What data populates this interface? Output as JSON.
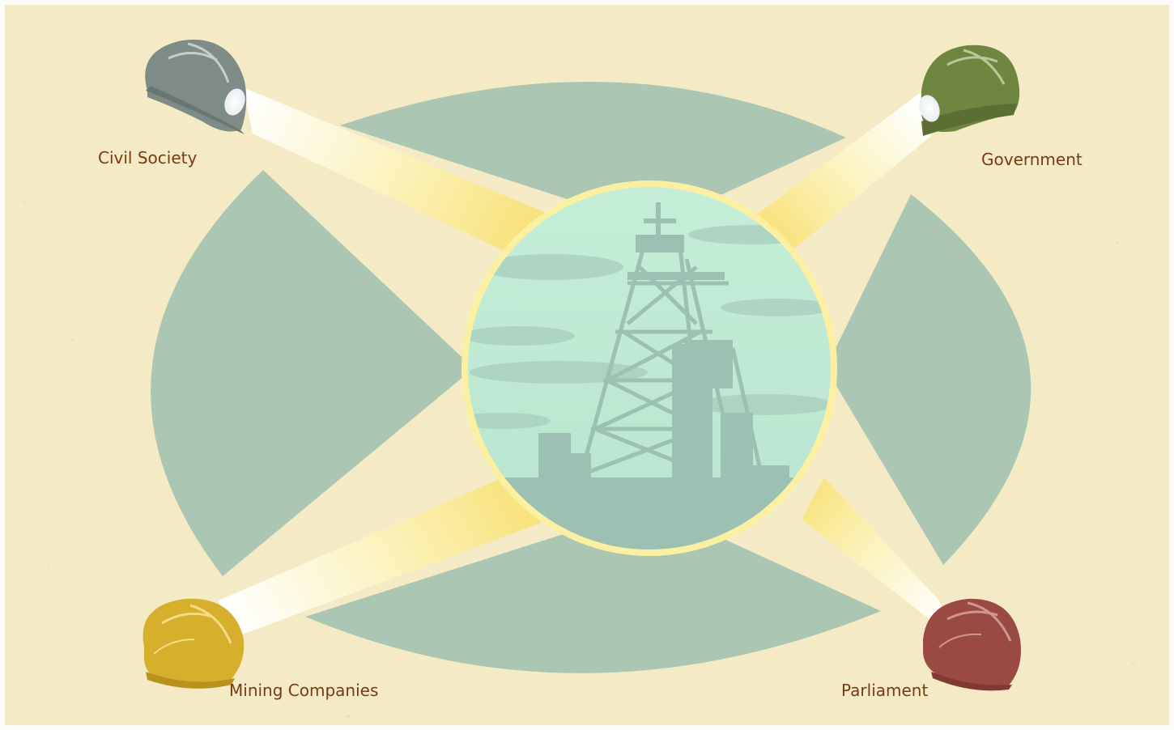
{
  "diagram": {
    "center": {
      "subject": "mine-headframe-icon"
    },
    "stakeholders": [
      {
        "id": "civil-society",
        "label": "Civil Society",
        "helmet_color": "#7f8b86",
        "icon": "miner-helmet-icon"
      },
      {
        "id": "government",
        "label": "Government",
        "helmet_color": "#6f8540",
        "icon": "miner-helmet-icon"
      },
      {
        "id": "mining-companies",
        "label": "Mining Companies",
        "helmet_color": "#d6af2c",
        "icon": "miner-helmet-icon"
      },
      {
        "id": "parliament",
        "label": "Parliament",
        "helmet_color": "#9a4a42",
        "icon": "miner-helmet-icon"
      }
    ],
    "colors": {
      "background": "#f4ebc6",
      "disc": "#abc6b2",
      "beam": "#f9e88a",
      "center_sky": "#c3ecd6",
      "silhouette": "#9cc1b2",
      "label_text": "#7a3a10"
    }
  }
}
